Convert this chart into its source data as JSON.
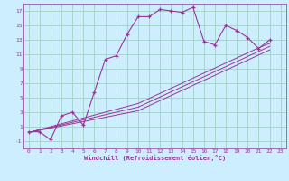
{
  "xlabel": "Windchill (Refroidissement éolien,°C)",
  "bg_color": "#cceeff",
  "grid_color": "#99ccbb",
  "line_color": "#993399",
  "xlim": [
    -0.5,
    23.5
  ],
  "ylim": [
    -2,
    18
  ],
  "xticks": [
    0,
    1,
    2,
    3,
    4,
    5,
    6,
    7,
    8,
    9,
    10,
    11,
    12,
    13,
    14,
    15,
    16,
    17,
    18,
    19,
    20,
    21,
    22,
    23
  ],
  "yticks": [
    -1,
    1,
    3,
    5,
    7,
    9,
    11,
    13,
    15,
    17
  ],
  "y_zigzag": [
    0.3,
    0.3,
    -0.8,
    2.5,
    3.0,
    1.2,
    5.8,
    10.3,
    10.8,
    13.8,
    16.2,
    16.2,
    17.2,
    17.0,
    16.8,
    17.5,
    12.8,
    12.3,
    15.0,
    14.3,
    13.3,
    11.8,
    13.0
  ],
  "y_lin1": [
    0.2,
    0.55,
    0.9,
    1.25,
    1.6,
    1.95,
    2.3,
    2.65,
    3.0,
    3.35,
    3.7,
    4.4,
    5.1,
    5.8,
    6.5,
    7.2,
    7.9,
    8.6,
    9.3,
    10.0,
    10.7,
    11.4,
    12.1
  ],
  "y_lin2": [
    0.2,
    0.6,
    1.0,
    1.4,
    1.8,
    2.2,
    2.6,
    3.0,
    3.4,
    3.8,
    4.2,
    4.9,
    5.6,
    6.3,
    7.0,
    7.7,
    8.4,
    9.1,
    9.8,
    10.5,
    11.2,
    11.9,
    12.5
  ],
  "y_lin3": [
    0.2,
    0.5,
    0.8,
    1.1,
    1.4,
    1.7,
    2.0,
    2.3,
    2.6,
    2.9,
    3.2,
    3.9,
    4.6,
    5.3,
    6.0,
    6.7,
    7.4,
    8.1,
    8.8,
    9.5,
    10.2,
    10.9,
    11.6
  ]
}
